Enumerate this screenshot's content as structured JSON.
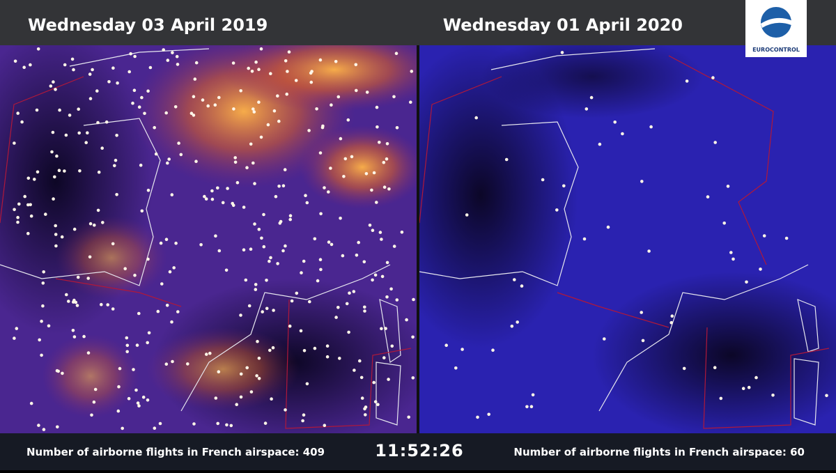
{
  "header": {
    "left_title": "Wednesday 03 April 2019",
    "right_title": "Wednesday 01 April 2020",
    "logo_text": "EUROCONTROL"
  },
  "footer": {
    "left_caption": "Number of airborne flights in French airspace: 409",
    "clock": "11:52:26",
    "right_caption": "Number of airborne flights in French airspace: 60"
  }
}
